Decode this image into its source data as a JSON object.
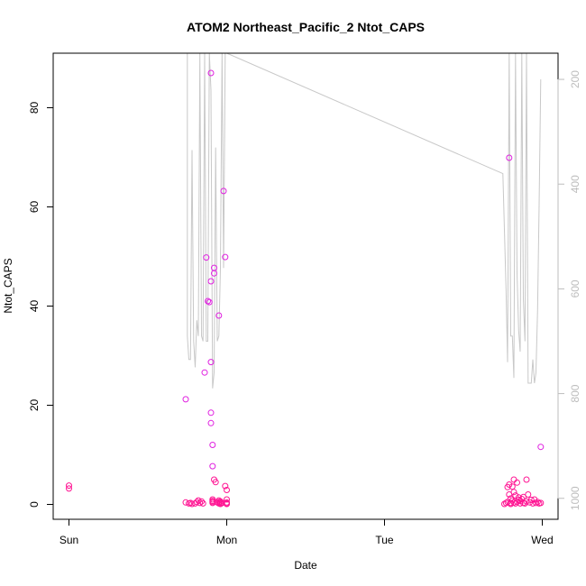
{
  "chart_data": {
    "type": "scatter",
    "title": "ATOM2 Northeast_Pacific_2 Ntot_CAPS",
    "xlabel": "Date",
    "ylabel": "Ntot_CAPS",
    "x_ticks": [
      "Sun",
      "Mon",
      "Tue",
      "Wed"
    ],
    "x_range_days": [
      -0.1,
      3.1
    ],
    "y_ticks": [
      0,
      20,
      40,
      60,
      80
    ],
    "ylim": [
      -3,
      91
    ],
    "y2_ticks": [
      "200",
      "400",
      "600",
      "800",
      "1000"
    ],
    "y2_values": [
      200,
      400,
      600,
      800,
      1000
    ],
    "y2lim": [
      1040,
      150
    ],
    "grid": false,
    "colors": {
      "points": "#e020e0",
      "points_dense": "#ff1493",
      "depth_line": "#c8c8c8",
      "right_axis": "#bdbdbd"
    },
    "series": [
      {
        "marker": "open-circle",
        "x": [
          0.0,
          0.0,
          0.74,
          0.74,
          0.76,
          0.77,
          0.78,
          0.8,
          0.81,
          0.82,
          0.83,
          0.84,
          0.85,
          0.86,
          0.87,
          0.88,
          0.89,
          0.9,
          0.9,
          0.9,
          0.9,
          0.9,
          0.91,
          0.91,
          0.91,
          0.91,
          0.91,
          0.91,
          0.92,
          0.92,
          0.92,
          0.93,
          0.94,
          0.95,
          0.95,
          0.95,
          0.95,
          0.96,
          0.96,
          0.96,
          0.97,
          0.98,
          0.99,
          0.99,
          1.0,
          1.0,
          1.0,
          1.0,
          1.0,
          2.76,
          2.77,
          2.78,
          2.78,
          2.79,
          2.79,
          2.79,
          2.8,
          2.8,
          2.8,
          2.81,
          2.81,
          2.82,
          2.82,
          2.82,
          2.83,
          2.83,
          2.84,
          2.84,
          2.85,
          2.85,
          2.86,
          2.86,
          2.87,
          2.88,
          2.88,
          2.89,
          2.9,
          2.9,
          2.91,
          2.92,
          2.93,
          2.94,
          2.95,
          2.96,
          2.97,
          2.98,
          2.99,
          2.99
        ],
        "y": [
          3.2,
          3.8,
          21.2,
          0.4,
          0.2,
          0.3,
          0.1,
          0.2,
          0.5,
          0.8,
          0.3,
          0.6,
          0.2,
          26.6,
          49.8,
          41.0,
          40.8,
          87.0,
          28.7,
          45.0,
          18.5,
          16.4,
          12.0,
          7.7,
          0.5,
          1.0,
          0.3,
          0.7,
          47.7,
          46.6,
          5.0,
          4.5,
          0.4,
          0.8,
          0.2,
          38.1,
          0.5,
          0.3,
          0.1,
          0.6,
          0.3,
          63.2,
          49.9,
          3.7,
          2.9,
          1.0,
          0.4,
          0.2,
          0.1,
          0.1,
          0.3,
          0.5,
          3.5,
          69.9,
          4.0,
          2.0,
          1.2,
          0.3,
          0.1,
          0.8,
          3.6,
          0.4,
          2.5,
          5.0,
          0.2,
          1.8,
          4.4,
          0.5,
          0.9,
          1.4,
          0.2,
          0.7,
          1.1,
          0.3,
          1.5,
          0.2,
          5.0,
          0.6,
          2.0,
          0.4,
          0.9,
          0.2,
          1.0,
          0.3,
          0.5,
          0.2,
          0.3,
          11.6
        ]
      },
      {
        "name": "",
        "axis": "right",
        "type": "line",
        "x": [
          0.75,
          0.75,
          0.76,
          0.77,
          0.78,
          0.79,
          0.8,
          0.81,
          0.82,
          0.83,
          0.84,
          0.85,
          0.86,
          0.87,
          0.88,
          0.89,
          0.9,
          0.91,
          0.92,
          0.93,
          0.94,
          0.95,
          0.96,
          0.97,
          0.98,
          0.99,
          1.0,
          2.75,
          2.77,
          2.78,
          2.79,
          2.8,
          2.81,
          2.82,
          2.83,
          2.84,
          2.85,
          2.86,
          2.87,
          2.88,
          2.89,
          2.9,
          2.91,
          2.92,
          2.93,
          2.94,
          2.95,
          2.96,
          2.97,
          2.98,
          2.99
        ],
        "y": [
          150,
          690,
          735,
          735,
          335,
          700,
          750,
          660,
          690,
          150,
          690,
          700,
          150,
          700,
          700,
          150,
          220,
          790,
          760,
          330,
          700,
          690,
          560,
          150,
          560,
          150,
          150,
          380,
          600,
          740,
          150,
          690,
          690,
          770,
          150,
          570,
          680,
          720,
          150,
          620,
          700,
          150,
          780,
          780,
          780,
          735,
          780,
          760,
          640,
          440,
          200
        ]
      }
    ]
  }
}
